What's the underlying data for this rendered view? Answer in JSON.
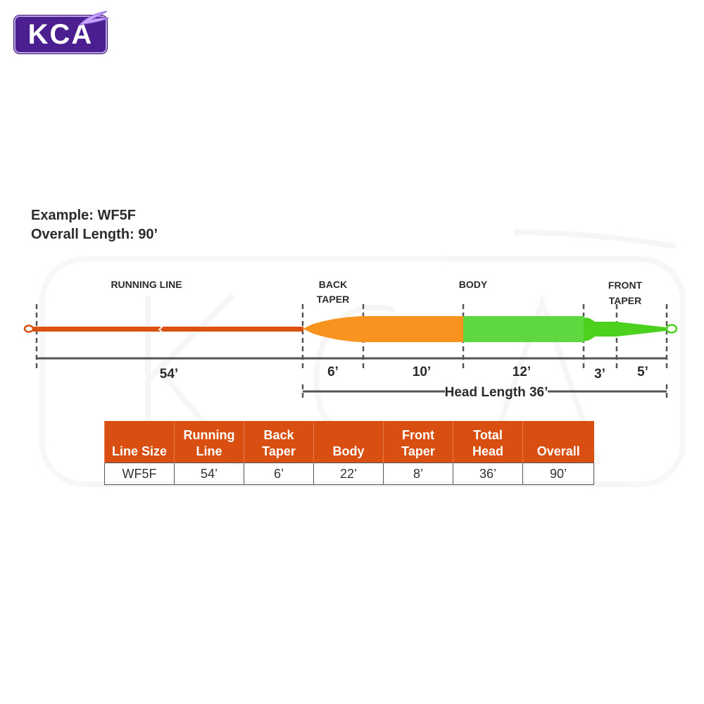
{
  "logo": {
    "text": "KCA"
  },
  "example": {
    "line1": "Example: WF5F",
    "line2": "Overall Length: 90’"
  },
  "diagram": {
    "segment_labels": {
      "running_line": "RUNNING LINE",
      "back_taper_1": "BACK",
      "back_taper_2": "TAPER",
      "body": "BODY",
      "front_taper_1": "FRONT",
      "front_taper_2": "TAPER"
    },
    "dimensions": {
      "running_line": "54’",
      "back_taper": "6’",
      "body_a": "10’",
      "body_b": "12’",
      "front_a": "3’",
      "front_b": "5’",
      "head": "Head Length 36’"
    },
    "colors": {
      "running_line": "#d95212",
      "orange_section": "#f7931e",
      "green_section": "#5fd840",
      "bright_green": "#4cd21e",
      "guide": "#555555"
    }
  },
  "table": {
    "headers": [
      [
        "",
        "Line Size"
      ],
      [
        "Running",
        "Line"
      ],
      [
        "Back",
        "Taper"
      ],
      [
        "",
        "Body"
      ],
      [
        "Front",
        "Taper"
      ],
      [
        "Total",
        "Head"
      ],
      [
        "",
        "Overall"
      ]
    ],
    "row": [
      "WF5F",
      "54’",
      "6’",
      "22’",
      "8’",
      "36’",
      "90’"
    ],
    "header_color": "#d94f12"
  }
}
